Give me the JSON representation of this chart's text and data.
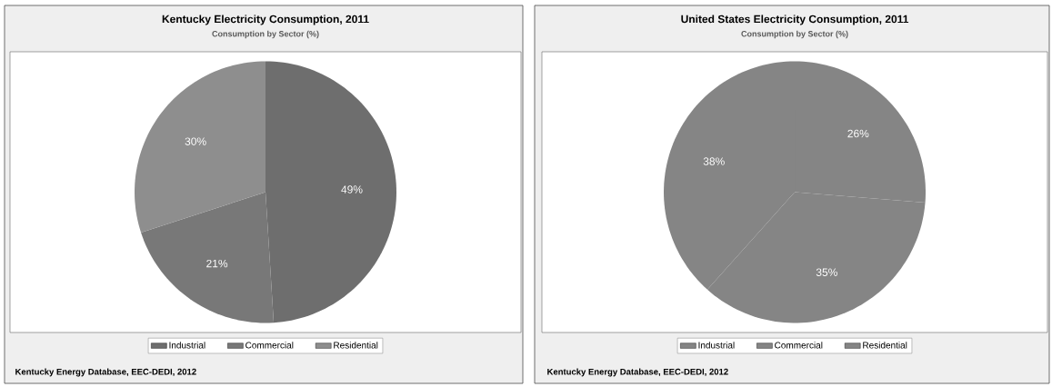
{
  "chart_data": [
    {
      "type": "pie",
      "title": "Kentucky Electricity Consumption, 2011",
      "subtitle": "Consumption by Sector (%)",
      "categories": [
        "Industrial",
        "Commercial",
        "Residential"
      ],
      "values": [
        49,
        21,
        30
      ],
      "colors": [
        "#6e6e6e",
        "#787878",
        "#8e8e8e"
      ],
      "value_labels": [
        "49%",
        "21%",
        "30%"
      ],
      "legend": "bottom",
      "annotations": [
        "Kentucky Energy Database, EEC-DEDI, 2012"
      ]
    },
    {
      "type": "pie",
      "title": "United States Electricity Consumption, 2011",
      "subtitle": "Consumption by Sector (%)",
      "categories": [
        "Industrial",
        "Commercial",
        "Residential"
      ],
      "values": [
        26,
        35,
        38
      ],
      "colors": [
        "#858585",
        "#858585",
        "#858585"
      ],
      "value_labels": [
        "26%",
        "35%",
        "38%"
      ],
      "legend": "bottom",
      "annotations": [
        "Kentucky Energy Database, EEC-DEDI, 2012"
      ]
    }
  ]
}
